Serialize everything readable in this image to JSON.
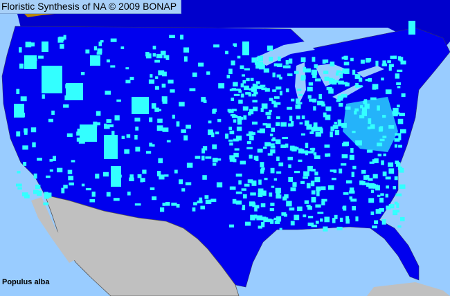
{
  "title": "Floristic Synthesis of NA © 2009 BONAP",
  "species": "Populus alba",
  "colors": {
    "water": "#99ccff",
    "land_us": "#0000ee",
    "land_canada": "#0000cc",
    "present": "#33ffff",
    "mexico": "#c0c0c0",
    "bc_region": "#b8860b",
    "borders": "#333366"
  }
}
